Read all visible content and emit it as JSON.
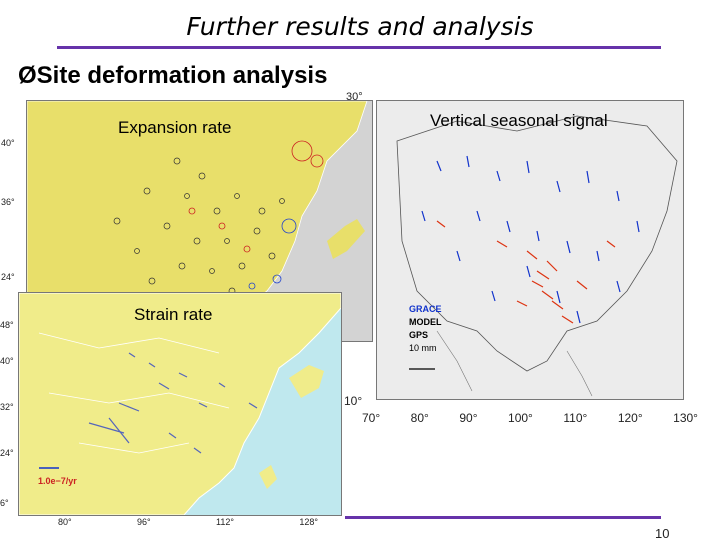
{
  "title": "Further results and analysis",
  "section": {
    "bullet": "Ø",
    "text": "Site deformation analysis"
  },
  "colors": {
    "rule": "#6633aa",
    "land_yellow": "#e8df6a",
    "ocean": "#d3d3d3",
    "strain_land": "#f0ec8a",
    "strain_ocean": "#bfe8ee",
    "seasonal_bg": "#ececec",
    "arrow_blue": "#1133cc",
    "arrow_red": "#dd3311"
  },
  "maps": {
    "expansion": {
      "label": "Expansion rate",
      "tick_top": "30°",
      "ticks_left": [
        "40°",
        "36°",
        "24°"
      ]
    },
    "seasonal": {
      "label": "Vertical seasonal signal",
      "legend": [
        "GRACE",
        "MODEL",
        "GPS",
        "10 mm"
      ],
      "lat_label": "10°",
      "lon_ticks": [
        "70°",
        "80°",
        "90°",
        "100°",
        "110°",
        "120°",
        "130°"
      ]
    },
    "strain": {
      "label": "Strain rate",
      "scale": "1.0e−7/yr",
      "lat_ticks": [
        "48°",
        "40°",
        "32°",
        "24°",
        "6°"
      ],
      "lon_ticks": [
        "80°",
        "96°",
        "112°",
        "128°"
      ]
    }
  },
  "page_number": "10"
}
